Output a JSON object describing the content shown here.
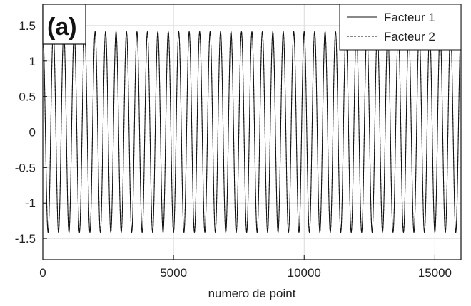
{
  "chart_data": {
    "type": "line",
    "panel_label": "(a)",
    "xlabel": "numero de point",
    "ylabel": "",
    "xlim": [
      0,
      16000
    ],
    "ylim": [
      -1.8,
      1.8
    ],
    "x_ticks": [
      0,
      5000,
      10000,
      15000
    ],
    "x_tick_labels": [
      "0",
      "5000",
      "10000",
      "15000"
    ],
    "y_ticks": [
      -1.5,
      -1,
      -0.5,
      0,
      0.5,
      1,
      1.5
    ],
    "y_tick_labels": [
      "-1.5",
      "-1",
      "-0.5",
      "0",
      "0.5",
      "1",
      "1.5"
    ],
    "grid": true,
    "legend_position": "top-right",
    "series": [
      {
        "name": "Facteur 1",
        "line_style": "solid",
        "color": "#111111",
        "amplitude": 1.414,
        "cycles_per_point": 0.0025,
        "phase_deg": 90,
        "x_range": [
          0,
          16000
        ]
      },
      {
        "name": "Facteur 2",
        "line_style": "dashed",
        "color": "#111111",
        "amplitude": 1.414,
        "cycles_per_point": 0.0025,
        "phase_deg": 90,
        "x_range": [
          0,
          16000
        ]
      }
    ]
  }
}
